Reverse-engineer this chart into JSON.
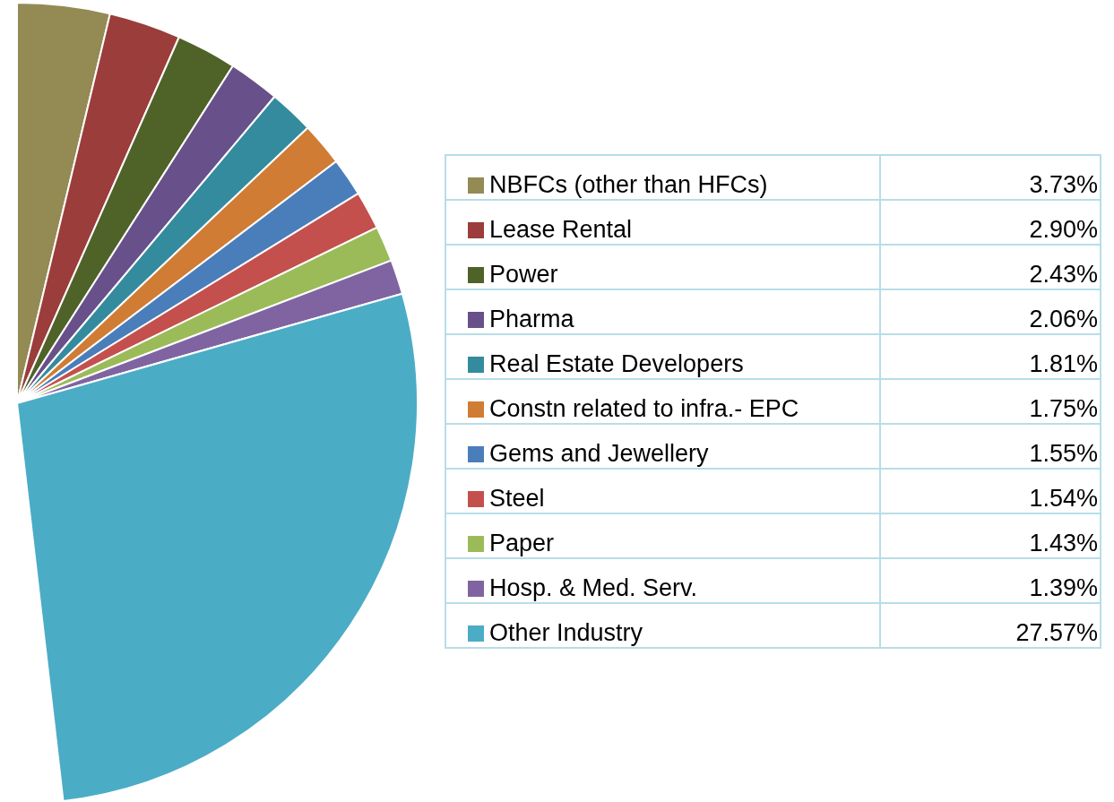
{
  "chart_data": {
    "type": "pie",
    "categories": [
      "NBFCs (other than HFCs)",
      "Lease Rental",
      "Power",
      "Pharma",
      "Real Estate Developers",
      "Constn related to infra.- EPC",
      "Gems and Jewellery",
      "Steel",
      "Paper",
      "Hosp. & Med. Serv.",
      "Other Industry"
    ],
    "values": [
      3.73,
      2.9,
      2.43,
      2.06,
      1.81,
      1.75,
      1.55,
      1.54,
      1.43,
      1.39,
      27.57
    ],
    "value_labels": [
      "3.73%",
      "2.90%",
      "2.43%",
      "2.06%",
      "1.81%",
      "1.75%",
      "1.55%",
      "1.54%",
      "1.43%",
      "1.39%",
      "27.57%"
    ],
    "colors": [
      "#948a54",
      "#9b3d3b",
      "#4f6228",
      "#68508a",
      "#348b9e",
      "#d07c34",
      "#4a7ebb",
      "#c4504d",
      "#9bbb59",
      "#8064a2",
      "#4bacc6"
    ],
    "legend": "right"
  }
}
